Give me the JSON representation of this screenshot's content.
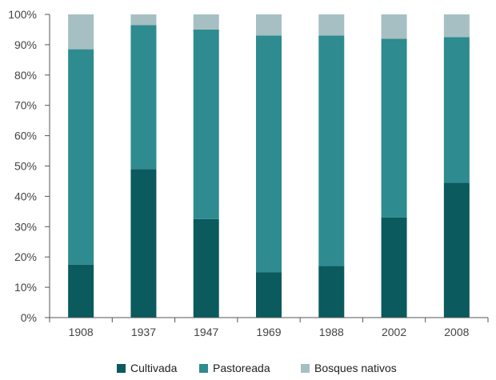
{
  "chart_data": {
    "type": "bar",
    "stacked": true,
    "categories": [
      "1908",
      "1937",
      "1947",
      "1969",
      "1988",
      "2002",
      "2008"
    ],
    "series": [
      {
        "name": "Cultivada",
        "color": "#0a5a5e",
        "values": [
          17.5,
          49,
          32.5,
          15,
          17,
          33,
          44.5
        ]
      },
      {
        "name": "Pastoreada",
        "color": "#2e8b90",
        "values": [
          71,
          47.5,
          62.5,
          78,
          76,
          59,
          48
        ]
      },
      {
        "name": "Bosques nativos",
        "color": "#a6bfc2",
        "values": [
          11.5,
          3.5,
          5,
          7,
          7,
          8,
          7.5
        ]
      }
    ],
    "y_ticks": [
      "0%",
      "10%",
      "20%",
      "30%",
      "40%",
      "50%",
      "60%",
      "70%",
      "80%",
      "90%",
      "100%"
    ],
    "ylim": [
      0,
      100
    ],
    "grid": false,
    "legend_position": "bottom-center"
  }
}
